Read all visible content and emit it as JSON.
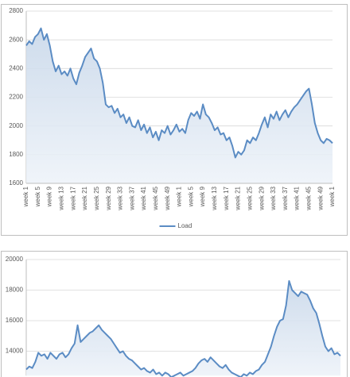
{
  "chart_data": [
    {
      "type": "area",
      "color": "#5b8cc4",
      "fill": "#dce6f1",
      "grid": true,
      "legend": "bottom",
      "categories": [
        "week 1",
        null,
        null,
        null,
        "week 5",
        null,
        null,
        null,
        "week 9",
        null,
        null,
        null,
        "week 13",
        null,
        null,
        null,
        "week 17",
        null,
        null,
        null,
        "week 21",
        null,
        null,
        null,
        "week 25",
        null,
        null,
        null,
        "week 29",
        null,
        null,
        null,
        "week 33",
        null,
        null,
        null,
        "week 37",
        null,
        null,
        null,
        "week 41",
        null,
        null,
        null,
        "week 45",
        null,
        null,
        null,
        "week 49",
        null,
        null,
        null,
        "week 1",
        null,
        null,
        null,
        "week 5",
        null,
        null,
        null,
        "week 9",
        null,
        null,
        null,
        "week 13",
        null,
        null,
        null,
        "week 17",
        null,
        null,
        null,
        "week 21",
        null,
        null,
        null,
        "week 25",
        null,
        null,
        null,
        "week 29",
        null,
        null,
        null,
        "week 33",
        null,
        null,
        null,
        "week 37",
        null,
        null,
        null,
        "week 41",
        null,
        null,
        null,
        "week 45",
        null,
        null,
        null,
        "week 49",
        null,
        null,
        null,
        "week 1"
      ],
      "series": [
        {
          "name": "Load",
          "color": "#5b8cc4",
          "values": [
            2560,
            2590,
            2570,
            2620,
            2640,
            2680,
            2600,
            2640,
            2560,
            2450,
            2380,
            2420,
            2360,
            2380,
            2350,
            2400,
            2330,
            2290,
            2370,
            2420,
            2480,
            2510,
            2540,
            2470,
            2450,
            2400,
            2300,
            2150,
            2130,
            2140,
            2090,
            2120,
            2060,
            2080,
            2020,
            2060,
            2000,
            1990,
            2040,
            1970,
            2010,
            1950,
            1990,
            1920,
            1960,
            1900,
            1970,
            1950,
            2000,
            1940,
            1970,
            2010,
            1960,
            1980,
            1950,
            2040,
            2090,
            2070,
            2100,
            2050,
            2150,
            2080,
            2060,
            2020,
            1970,
            1990,
            1940,
            1950,
            1900,
            1920,
            1860,
            1780,
            1820,
            1800,
            1830,
            1900,
            1880,
            1920,
            1900,
            1950,
            2010,
            2060,
            1990,
            2080,
            2050,
            2100,
            2040,
            2080,
            2110,
            2060,
            2100,
            2130,
            2150,
            2180,
            2210,
            2240,
            2260,
            2150,
            2020,
            1950,
            1900,
            1880,
            1910,
            1900,
            1880
          ]
        }
      ],
      "ylim": [
        1600,
        2800
      ],
      "yticks": [
        1600,
        1800,
        2000,
        2200,
        2400,
        2600,
        2800
      ]
    },
    {
      "type": "area",
      "color": "#5b8cc4",
      "fill": "#dce6f1",
      "grid": true,
      "series": [
        {
          "color": "#5b8cc4",
          "values": [
            12800,
            13000,
            12900,
            13300,
            13900,
            13700,
            13800,
            13500,
            13900,
            13700,
            13500,
            13800,
            13900,
            13600,
            13800,
            14200,
            14500,
            15700,
            14600,
            14800,
            15000,
            15200,
            15300,
            15500,
            15700,
            15400,
            15200,
            15000,
            14800,
            14500,
            14200,
            13900,
            14000,
            13700,
            13500,
            13400,
            13200,
            13000,
            12800,
            12900,
            12700,
            12600,
            12800,
            12500,
            12600,
            12400,
            12600,
            12500,
            12300,
            12400,
            12500,
            12600,
            12400,
            12500,
            12600,
            12700,
            12900,
            13200,
            13400,
            13500,
            13300,
            13600,
            13400,
            13200,
            13000,
            12900,
            13100,
            12800,
            12600,
            12500,
            12400,
            12300,
            12500,
            12400,
            12600,
            12500,
            12700,
            12800,
            13100,
            13300,
            13800,
            14300,
            15000,
            15600,
            16000,
            16100,
            17000,
            18600,
            18000,
            17800,
            17600,
            17900,
            17800,
            17700,
            17300,
            16800,
            16500,
            15800,
            15000,
            14300,
            14000,
            14200,
            13800,
            13900,
            13700
          ]
        }
      ],
      "ylim": [
        12400,
        20000
      ],
      "yticks": [
        14000,
        16000,
        18000,
        20000
      ]
    }
  ]
}
